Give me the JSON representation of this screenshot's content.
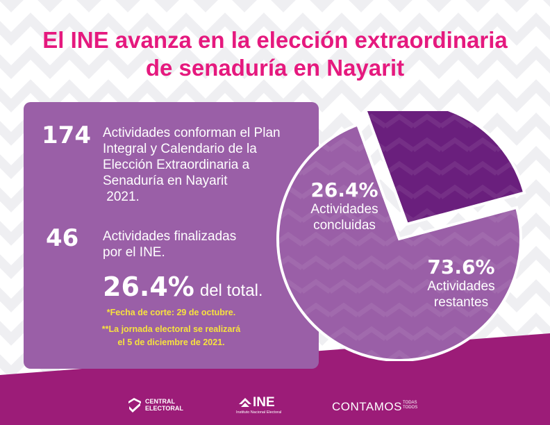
{
  "title_line1": "El INE avanza en la elección extraordinaria",
  "title_line2": "de senaduría en Nayarit",
  "card": {
    "num1": "174",
    "desc1_lines": [
      "Actividades conforman el Plan",
      "Integral y Calendario de la",
      "Elección Extraordinaria a",
      "Senaduría en Nayarit",
      " 2021."
    ],
    "num2": "46",
    "desc2_lines": [
      "Actividades finalizadas",
      "por el INE."
    ],
    "big_pct": "26.4%",
    "big_suffix": "del total.",
    "note1": "*Fecha de corte: 29 de octubre.",
    "note2_line1": "**La jornada electoral se realizará",
    "note2_line2": "el 5 de diciembre de 2021."
  },
  "colors": {
    "title": "#e5197e",
    "card": "#9a5fa7",
    "slice_done": "#6a1f7d",
    "slice_rest": "#9a5fa7",
    "footer": "#9c1c78",
    "note": "#f7e23e"
  },
  "chart_data": {
    "type": "pie",
    "slices": [
      {
        "label_pct": "26.4%",
        "label_text": "Actividades concluidas",
        "label_line1": "Actividades",
        "label_line2": "concluidas",
        "value": 26.4,
        "exploded": true
      },
      {
        "label_pct": "73.6%",
        "label_text": "Actividades restantes",
        "label_line1": "Actividades",
        "label_line2": "restantes",
        "value": 73.6,
        "exploded": false
      }
    ]
  },
  "footer": {
    "logo1_line1": "CENTRAL",
    "logo1_line2": "ELECTORAL",
    "logo2": "INE",
    "logo2_sub": "Instituto Nacional Electoral",
    "logo3": "CONTAMOS",
    "logo3_sub1": "TODAS",
    "logo3_sub2": "TODOS"
  }
}
